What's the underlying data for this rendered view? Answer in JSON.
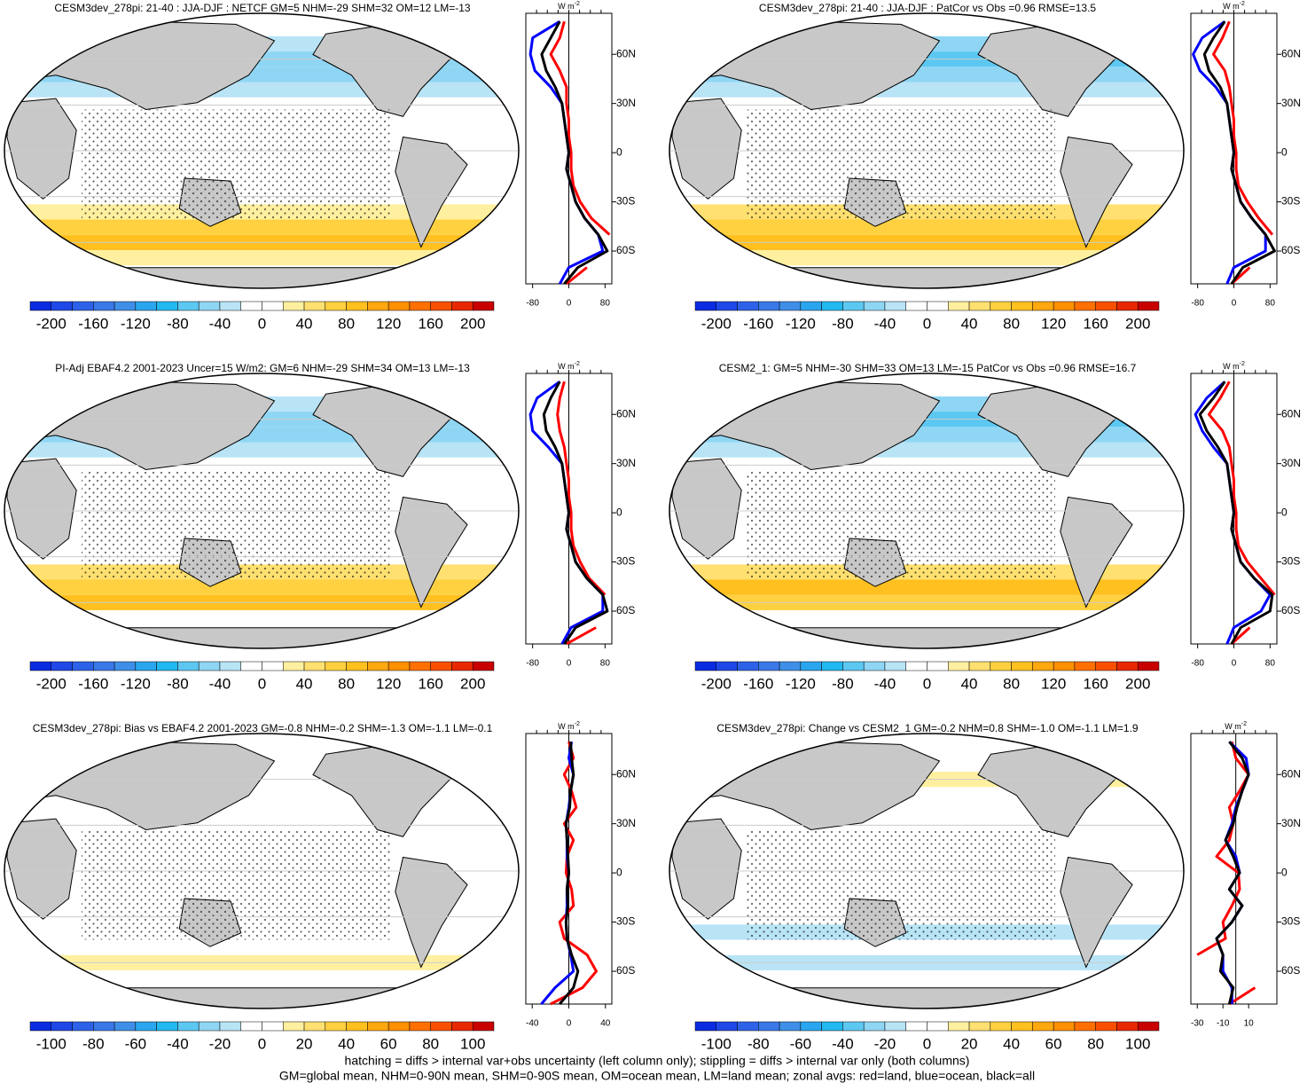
{
  "chart_data": [
    {
      "type": "map",
      "title": "CESM3dev_278pi: 21-40 : JJA-DJF : NETCF GM=5 NHM=-29 SHM=32 OM=12 LM=-13",
      "colorbar": {
        "colors": [
          "#0a2be0",
          "#1f48e6",
          "#2d62e8",
          "#3a78e8",
          "#3f8fe8",
          "#2aa6ee",
          "#22b8f0",
          "#5cc8f2",
          "#8fd6f4",
          "#b8e4f6",
          "#ffffff",
          "#ffffff",
          "#fff0a0",
          "#ffe070",
          "#ffd040",
          "#ffc020",
          "#ffa810",
          "#ff9000",
          "#ff7000",
          "#f85000",
          "#e82800",
          "#c80000"
        ],
        "lim": [
          -220,
          220
        ],
        "ticks": [
          -200,
          -160,
          -120,
          -80,
          -40,
          0,
          40,
          80,
          120,
          160,
          200
        ]
      },
      "zonal": {
        "unit": "W m",
        "unit_exp": "-2",
        "lat": [
          -80,
          -70,
          -60,
          -50,
          -40,
          -30,
          -20,
          -10,
          0,
          10,
          20,
          30,
          40,
          50,
          60,
          70,
          80
        ],
        "xlim": [
          -95,
          95
        ],
        "xticks": [
          -80,
          0,
          80
        ],
        "ylim": [
          -80,
          85
        ],
        "yticks": [
          {
            "value": 60,
            "label": "60N"
          },
          {
            "value": 30,
            "label": "30N"
          },
          0,
          {
            "value": -30,
            "label": "30S"
          },
          {
            "value": -60,
            "label": "60S"
          }
        ],
        "series": [
          {
            "color": "#ff0000",
            "values": [
              -5,
              40,
              null,
              90,
              50,
              25,
              10,
              5,
              5,
              0,
              0,
              -5,
              -5,
              -20,
              -40,
              -20,
              -10
            ]
          },
          {
            "color": "#0000ff",
            "values": [
              -20,
              0,
              75,
              65,
              35,
              15,
              5,
              -5,
              0,
              -5,
              -10,
              -15,
              -40,
              -75,
              -85,
              -80,
              -20
            ]
          },
          {
            "color": "#000000",
            "values": [
              -10,
              20,
              85,
              65,
              35,
              15,
              5,
              -5,
              0,
              -5,
              -10,
              -15,
              -30,
              -50,
              -60,
              -40,
              -20
            ]
          }
        ]
      }
    },
    {
      "type": "map",
      "title": "CESM3dev_278pi: 21-40 : JJA-DJF : PatCor vs Obs =0.96 RMSE=13.5",
      "colorbar": {
        "colors": [
          "#0a2be0",
          "#1f48e6",
          "#2d62e8",
          "#3a78e8",
          "#3f8fe8",
          "#2aa6ee",
          "#22b8f0",
          "#5cc8f2",
          "#8fd6f4",
          "#b8e4f6",
          "#ffffff",
          "#ffffff",
          "#fff0a0",
          "#ffe070",
          "#ffd040",
          "#ffc020",
          "#ffa810",
          "#ff9000",
          "#ff7000",
          "#f85000",
          "#e82800",
          "#c80000"
        ],
        "lim": [
          -220,
          220
        ],
        "ticks": [
          -200,
          -160,
          -120,
          -80,
          -40,
          0,
          40,
          80,
          120,
          160,
          200
        ]
      },
      "zonal": {
        "unit": "W m",
        "unit_exp": "-2",
        "lat": [
          -80,
          -70,
          -60,
          -50,
          -40,
          -30,
          -20,
          -10,
          0,
          10,
          20,
          30,
          40,
          50,
          60,
          70,
          80
        ],
        "xlim": [
          -95,
          95
        ],
        "xticks": [
          -80,
          0,
          80
        ],
        "ylim": [
          -80,
          85
        ],
        "yticks": [
          {
            "value": 60,
            "label": "60N"
          },
          {
            "value": 30,
            "label": "30N"
          },
          0,
          {
            "value": -30,
            "label": "30S"
          },
          {
            "value": -60,
            "label": "60S"
          }
        ],
        "series": [
          {
            "color": "#ff0000",
            "values": [
              -5,
              35,
              null,
              85,
              55,
              30,
              10,
              5,
              5,
              0,
              0,
              -5,
              -10,
              -20,
              -45,
              -25,
              -10
            ]
          },
          {
            "color": "#0000ff",
            "values": [
              -15,
              0,
              70,
              70,
              40,
              15,
              5,
              -5,
              0,
              -5,
              -10,
              -15,
              -40,
              -75,
              -90,
              -70,
              -20
            ]
          },
          {
            "color": "#000000",
            "values": [
              -5,
              20,
              90,
              70,
              40,
              15,
              5,
              -5,
              0,
              -5,
              -10,
              -15,
              -30,
              -55,
              -65,
              -45,
              -20
            ]
          }
        ]
      }
    },
    {
      "type": "map",
      "title": "PI-Adj EBAF4.2 2001-2023 Uncer=15 W/m2: GM=6 NHM=-29 SHM=34 OM=13 LM=-13",
      "colorbar": {
        "colors": [
          "#0a2be0",
          "#1f48e6",
          "#2d62e8",
          "#3a78e8",
          "#3f8fe8",
          "#2aa6ee",
          "#22b8f0",
          "#5cc8f2",
          "#8fd6f4",
          "#b8e4f6",
          "#ffffff",
          "#ffffff",
          "#fff0a0",
          "#ffe070",
          "#ffd040",
          "#ffc020",
          "#ffa810",
          "#ff9000",
          "#ff7000",
          "#f85000",
          "#e82800",
          "#c80000"
        ],
        "lim": [
          -220,
          220
        ],
        "ticks": [
          -200,
          -160,
          -120,
          -80,
          -40,
          0,
          40,
          80,
          120,
          160,
          200
        ]
      },
      "zonal": {
        "unit": "W m",
        "unit_exp": "-2",
        "lat": [
          -80,
          -70,
          -60,
          -50,
          -40,
          -30,
          -20,
          -10,
          0,
          10,
          20,
          30,
          40,
          50,
          60,
          70,
          80
        ],
        "xlim": [
          -95,
          95
        ],
        "xticks": [
          -80,
          0,
          80
        ],
        "ylim": [
          -80,
          85
        ],
        "yticks": [
          {
            "value": 60,
            "label": "60N"
          },
          {
            "value": 30,
            "label": "30N"
          },
          0,
          {
            "value": -30,
            "label": "30S"
          },
          {
            "value": -60,
            "label": "60S"
          }
        ],
        "series": [
          {
            "color": "#ff0000",
            "values": [
              -5,
              60,
              null,
              80,
              45,
              25,
              10,
              5,
              5,
              0,
              0,
              -5,
              -10,
              -20,
              -25,
              -20,
              -10
            ]
          },
          {
            "color": "#0000ff",
            "values": [
              -15,
              5,
              75,
              75,
              40,
              15,
              5,
              -5,
              0,
              -5,
              -10,
              -15,
              -45,
              -80,
              -85,
              -70,
              -20
            ]
          },
          {
            "color": "#000000",
            "values": [
              -10,
              15,
              85,
              75,
              40,
              15,
              5,
              -5,
              0,
              -5,
              -10,
              -15,
              -30,
              -50,
              -55,
              -40,
              -20
            ]
          }
        ]
      }
    },
    {
      "type": "map",
      "title": "CESM2_1: GM=5 NHM=-30 SHM=33 OM=13 LM=-15 PatCor vs Obs =0.96 RMSE=16.7",
      "colorbar": {
        "colors": [
          "#0a2be0",
          "#1f48e6",
          "#2d62e8",
          "#3a78e8",
          "#3f8fe8",
          "#2aa6ee",
          "#22b8f0",
          "#5cc8f2",
          "#8fd6f4",
          "#b8e4f6",
          "#ffffff",
          "#ffffff",
          "#fff0a0",
          "#ffe070",
          "#ffd040",
          "#ffc020",
          "#ffa810",
          "#ff9000",
          "#ff7000",
          "#f85000",
          "#e82800",
          "#c80000"
        ],
        "lim": [
          -220,
          220
        ],
        "ticks": [
          -200,
          -160,
          -120,
          -80,
          -40,
          0,
          40,
          80,
          120,
          160,
          200
        ]
      },
      "zonal": {
        "unit": "W m",
        "unit_exp": "-2",
        "lat": [
          -80,
          -70,
          -60,
          -50,
          -40,
          -30,
          -20,
          -10,
          0,
          10,
          20,
          30,
          40,
          50,
          60,
          70,
          80
        ],
        "xlim": [
          -95,
          95
        ],
        "xticks": [
          -80,
          0,
          80
        ],
        "ylim": [
          -80,
          85
        ],
        "yticks": [
          {
            "value": 60,
            "label": "60N"
          },
          {
            "value": 30,
            "label": "30N"
          },
          0,
          {
            "value": -30,
            "label": "30S"
          },
          {
            "value": -60,
            "label": "60S"
          }
        ],
        "series": [
          {
            "color": "#ff0000",
            "values": [
              -5,
              35,
              null,
              90,
              60,
              30,
              10,
              5,
              5,
              0,
              0,
              -5,
              -10,
              -25,
              -55,
              -30,
              -10
            ]
          },
          {
            "color": "#0000ff",
            "values": [
              -15,
              0,
              60,
              80,
              45,
              15,
              5,
              -5,
              0,
              -5,
              -10,
              -15,
              -45,
              -70,
              -85,
              -60,
              -20
            ]
          },
          {
            "color": "#000000",
            "values": [
              -5,
              15,
              80,
              85,
              45,
              15,
              5,
              -5,
              0,
              -5,
              -10,
              -15,
              -35,
              -60,
              -75,
              -45,
              -20
            ]
          }
        ]
      }
    },
    {
      "type": "map",
      "title": "CESM3dev_278pi: Bias vs EBAF4.2 2001-2023 GM=-0.8 NHM=-0.2 SHM=-1.3 OM=-1.1 LM=-0.1",
      "colorbar": {
        "colors": [
          "#0a2be0",
          "#1f48e6",
          "#2d62e8",
          "#3a78e8",
          "#3f8fe8",
          "#2aa6ee",
          "#22b8f0",
          "#5cc8f2",
          "#8fd6f4",
          "#b8e4f6",
          "#ffffff",
          "#ffffff",
          "#fff0a0",
          "#ffe070",
          "#ffd040",
          "#ffc020",
          "#ffa810",
          "#ff9000",
          "#ff7000",
          "#f85000",
          "#e82800",
          "#c80000"
        ],
        "lim": [
          -110,
          110
        ],
        "ticks": [
          -100,
          -80,
          -60,
          -40,
          -20,
          0,
          20,
          40,
          60,
          80,
          100
        ]
      },
      "zonal": {
        "unit": "W m",
        "unit_exp": "-2",
        "lat": [
          -80,
          -70,
          -60,
          -50,
          -40,
          -30,
          -20,
          -10,
          0,
          10,
          20,
          30,
          40,
          50,
          60,
          70,
          80
        ],
        "xlim": [
          -47,
          47
        ],
        "xticks": [
          -40,
          0,
          40
        ],
        "ylim": [
          -80,
          85
        ],
        "yticks": [
          {
            "value": 60,
            "label": "60N"
          },
          {
            "value": 30,
            "label": "30N"
          },
          0,
          {
            "value": -30,
            "label": "30S"
          },
          {
            "value": -60,
            "label": "60S"
          }
        ],
        "series": [
          {
            "color": "#ff0000",
            "values": [
              -20,
              15,
              30,
              20,
              -5,
              -10,
              5,
              3,
              -3,
              -2,
              5,
              -5,
              8,
              3,
              -5,
              5,
              0
            ]
          },
          {
            "color": "#0000ff",
            "values": [
              -30,
              -15,
              5,
              2,
              -2,
              -3,
              -2,
              -2,
              0,
              -2,
              -2,
              -3,
              0,
              2,
              5,
              0,
              3
            ]
          },
          {
            "color": "#000000",
            "values": [
              -10,
              5,
              10,
              3,
              -2,
              -3,
              -1,
              -2,
              0,
              -1,
              -2,
              -3,
              1,
              2,
              5,
              3,
              2
            ]
          }
        ]
      }
    },
    {
      "type": "map",
      "title": "CESM3dev_278pi: Change vs CESM2_1 GM=-0.2 NHM=0.8 SHM=-1.0 OM=-1.1 LM=1.9",
      "colorbar": {
        "colors": [
          "#0a2be0",
          "#1f48e6",
          "#2d62e8",
          "#3a78e8",
          "#3f8fe8",
          "#2aa6ee",
          "#22b8f0",
          "#5cc8f2",
          "#8fd6f4",
          "#b8e4f6",
          "#ffffff",
          "#ffffff",
          "#fff0a0",
          "#ffe070",
          "#ffd040",
          "#ffc020",
          "#ffa810",
          "#ff9000",
          "#ff7000",
          "#f85000",
          "#e82800",
          "#c80000"
        ],
        "lim": [
          -110,
          110
        ],
        "ticks": [
          -100,
          -80,
          -60,
          -40,
          -20,
          0,
          20,
          40,
          60,
          80,
          100
        ]
      },
      "zonal": {
        "unit": "W m",
        "unit_exp": "-2",
        "lat": [
          -80,
          -70,
          -60,
          -50,
          -40,
          -30,
          -20,
          -10,
          0,
          10,
          20,
          30,
          40,
          50,
          60,
          70,
          80
        ],
        "xlim": [
          -35,
          32
        ],
        "xticks": [
          -30,
          -10,
          10
        ],
        "ylim": [
          -80,
          85
        ],
        "yticks": [
          {
            "value": 60,
            "label": "60N"
          },
          {
            "value": 30,
            "label": "30N"
          },
          0,
          {
            "value": -30,
            "label": "30S"
          },
          {
            "value": -60,
            "label": "60S"
          }
        ],
        "series": [
          {
            "color": "#ff0000",
            "values": [
              -5,
              15,
              null,
              -30,
              -8,
              -10,
              -3,
              3,
              2,
              -15,
              -5,
              -2,
              -5,
              3,
              10,
              0,
              -3
            ]
          },
          {
            "color": "#0000ff",
            "values": [
              -3,
              -3,
              -10,
              -10,
              -15,
              -3,
              5,
              -5,
              3,
              0,
              -8,
              -3,
              0,
              5,
              10,
              8,
              -5
            ]
          },
          {
            "color": "#000000",
            "values": [
              -5,
              -2,
              -12,
              -10,
              -15,
              -3,
              5,
              -5,
              3,
              -2,
              -8,
              -2,
              1,
              5,
              10,
              5,
              -5
            ]
          }
        ]
      }
    }
  ],
  "footer": [
    "hatching = diffs > internal var+obs uncertainty (left column only); stippling = diffs > internal var only (both columns)",
    "GM=global mean, NHM=0-90N mean, SHM=0-90S mean, OM=ocean mean, LM=land mean; zonal avgs: red=land, blue=ocean, black=all"
  ]
}
